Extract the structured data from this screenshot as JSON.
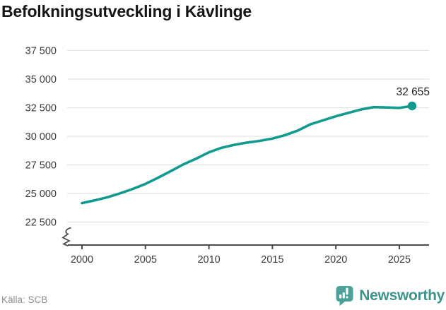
{
  "title": "Befolkningsutveckling i Kävlinge",
  "source": "Källa: SCB",
  "branding": {
    "name": "Newsworthy",
    "icon": "speech-bubble-bar-chart-icon",
    "icon_color": "#4aa19a",
    "text_color": "#3e938c"
  },
  "colors": {
    "background": "#ffffff",
    "line": "#119a8d",
    "grid": "#e3e3e3",
    "axis": "#4b4b4b",
    "tick_label": "#3c3c3c",
    "annotation": "#1f1f1f",
    "title": "#161616",
    "source": "#8f8f8f"
  },
  "chart_data": {
    "type": "line",
    "title": "Befolkningsutveckling i Kävlinge",
    "xlabel": "",
    "ylabel": "",
    "grid": "horizontal",
    "legend": "none",
    "axis_break_bottom_left": true,
    "x": [
      2000,
      2001,
      2002,
      2003,
      2004,
      2005,
      2006,
      2007,
      2008,
      2009,
      2010,
      2011,
      2012,
      2013,
      2014,
      2015,
      2016,
      2017,
      2018,
      2019,
      2020,
      2021,
      2022,
      2023,
      2024,
      2025,
      2026
    ],
    "values": [
      24160,
      24400,
      24670,
      25010,
      25400,
      25840,
      26380,
      26960,
      27550,
      28050,
      28600,
      29000,
      29250,
      29450,
      29600,
      29800,
      30100,
      30500,
      31050,
      31400,
      31750,
      32050,
      32350,
      32550,
      32520,
      32480,
      32655
    ],
    "x_ticks": [
      2000,
      2005,
      2010,
      2015,
      2020,
      2025
    ],
    "y_ticks": [
      37500,
      35000,
      32500,
      30000,
      27500,
      25000,
      22500
    ],
    "y_tick_labels": [
      "37 500",
      "35 000",
      "32 500",
      "30 000",
      "27 500",
      "25 000",
      "22 500"
    ],
    "xlim": [
      1999,
      2027.5
    ],
    "ylim": [
      22500,
      38500
    ],
    "end_value": 32655,
    "end_label": "32 655"
  }
}
